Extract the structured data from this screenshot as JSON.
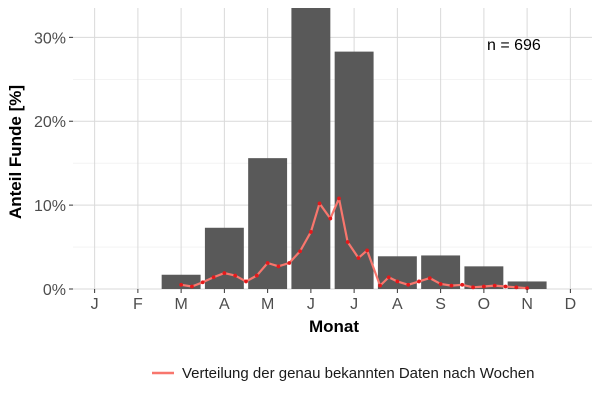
{
  "chart_data": {
    "type": "bar",
    "xlabel": "Monat",
    "ylabel": "Anteil Funde [%]",
    "ylim": [
      0,
      33.5
    ],
    "yticks": [
      0,
      10,
      20,
      30
    ],
    "ytick_labels": [
      "0%",
      "10%",
      "20%",
      "30%"
    ],
    "categories": [
      "J",
      "F",
      "M",
      "A",
      "M",
      "J",
      "J",
      "A",
      "S",
      "O",
      "N",
      "D"
    ],
    "values": [
      0,
      0,
      1.7,
      7.3,
      15.6,
      33.5,
      28.3,
      3.9,
      4.0,
      2.7,
      0.9,
      0
    ],
    "annotation": "n = 696",
    "grid": true,
    "legend_position": "bottom",
    "colors": {
      "bar": "#595959",
      "line": "#f8766d",
      "point": "#e41a1c",
      "grid": "#d9d9d9"
    },
    "series": [
      {
        "name": "Verteilung der genau bekannten Daten nach Wochen",
        "type": "line",
        "x": [
          3.0,
          3.25,
          3.5,
          3.75,
          4.0,
          4.25,
          4.5,
          4.75,
          5.0,
          5.25,
          5.5,
          5.75,
          6.0,
          6.2,
          6.45,
          6.65,
          6.85,
          7.1,
          7.3,
          7.6,
          7.8,
          8.0,
          8.25,
          8.5,
          8.75,
          9.0,
          9.25,
          9.5,
          9.75,
          10.0,
          10.25,
          10.5,
          10.75,
          11.0
        ],
        "y": [
          0.5,
          0.3,
          0.8,
          1.4,
          1.9,
          1.6,
          0.9,
          1.6,
          3.1,
          2.7,
          3.1,
          4.5,
          6.8,
          10.2,
          8.4,
          10.8,
          5.6,
          3.7,
          4.6,
          0.4,
          1.4,
          0.9,
          0.5,
          0.9,
          1.3,
          0.6,
          0.4,
          0.5,
          0.2,
          0.3,
          0.4,
          0.3,
          0.2,
          0.1
        ]
      }
    ]
  }
}
